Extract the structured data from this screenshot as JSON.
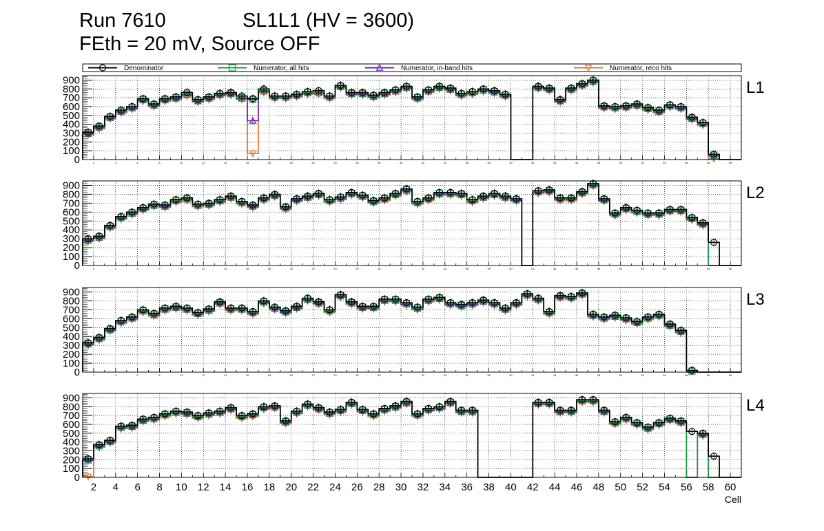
{
  "title": {
    "run": "Run 7610",
    "chamber": "SL1L1 (HV = 3600)",
    "settings": "FEth = 20 mV, Source OFF"
  },
  "colors": {
    "denominator": "#000000",
    "numerator_all": "#1a9a4a",
    "numerator_inband": "#6a1fb0",
    "numerator_reco": "#d97a3a"
  },
  "chart_data": {
    "type": "step-histogram",
    "xlabel": "Cell",
    "xlim": [
      1,
      61
    ],
    "ylim": [
      0,
      950
    ],
    "yticks": [
      0,
      100,
      200,
      300,
      400,
      500,
      600,
      700,
      800,
      900
    ],
    "xticks": [
      2,
      4,
      6,
      8,
      10,
      12,
      14,
      16,
      18,
      20,
      22,
      24,
      26,
      28,
      30,
      32,
      34,
      36,
      38,
      40,
      42,
      44,
      46,
      48,
      50,
      52,
      54,
      56,
      58,
      60
    ],
    "legend": [
      {
        "key": "denominator",
        "label": "Denominator",
        "marker": "circle"
      },
      {
        "key": "numerator_all",
        "label": "Numerator, all hits",
        "marker": "square"
      },
      {
        "key": "numerator_inband",
        "label": "Numerator, in-band hits",
        "marker": "triangle-up"
      },
      {
        "key": "numerator_reco",
        "label": "Numerator, reco hits",
        "marker": "triangle-down"
      }
    ],
    "layers": [
      {
        "name": "L1",
        "denominator": [
          310,
          380,
          490,
          560,
          600,
          690,
          630,
          690,
          710,
          760,
          680,
          710,
          750,
          760,
          720,
          690,
          800,
          720,
          720,
          740,
          770,
          780,
          720,
          840,
          760,
          760,
          730,
          760,
          790,
          830,
          710,
          790,
          830,
          810,
          750,
          770,
          800,
          780,
          740,
          0,
          0,
          830,
          810,
          680,
          810,
          860,
          900,
          610,
          600,
          610,
          630,
          590,
          560,
          620,
          600,
          480,
          420,
          60,
          0,
          0
        ],
        "all": [
          300,
          370,
          480,
          550,
          590,
          680,
          620,
          680,
          700,
          740,
          670,
          700,
          740,
          750,
          700,
          680,
          780,
          710,
          710,
          730,
          760,
          760,
          710,
          830,
          750,
          750,
          720,
          750,
          780,
          820,
          700,
          780,
          820,
          800,
          740,
          760,
          790,
          770,
          730,
          0,
          0,
          820,
          800,
          670,
          800,
          850,
          890,
          600,
          590,
          600,
          620,
          580,
          550,
          610,
          590,
          470,
          410,
          50,
          0,
          0
        ],
        "inband": [
          290,
          360,
          470,
          540,
          580,
          670,
          610,
          670,
          690,
          730,
          660,
          690,
          730,
          740,
          690,
          440,
          770,
          700,
          700,
          720,
          750,
          750,
          700,
          820,
          740,
          740,
          710,
          740,
          770,
          810,
          690,
          770,
          810,
          790,
          730,
          750,
          780,
          760,
          720,
          0,
          0,
          810,
          790,
          660,
          790,
          840,
          880,
          590,
          580,
          590,
          610,
          570,
          540,
          600,
          580,
          460,
          400,
          40,
          0,
          0
        ],
        "reco": [
          280,
          350,
          460,
          530,
          570,
          660,
          600,
          660,
          680,
          720,
          650,
          680,
          720,
          730,
          680,
          70,
          760,
          690,
          690,
          710,
          740,
          740,
          690,
          810,
          730,
          730,
          700,
          730,
          760,
          800,
          680,
          760,
          800,
          780,
          720,
          740,
          770,
          750,
          710,
          0,
          0,
          800,
          780,
          650,
          780,
          830,
          870,
          580,
          570,
          580,
          600,
          560,
          530,
          590,
          570,
          450,
          390,
          10,
          0,
          0
        ]
      },
      {
        "name": "L2",
        "denominator": [
          300,
          330,
          450,
          550,
          600,
          650,
          690,
          680,
          740,
          760,
          690,
          700,
          740,
          780,
          720,
          680,
          760,
          800,
          660,
          750,
          780,
          810,
          740,
          770,
          820,
          790,
          730,
          760,
          810,
          860,
          720,
          760,
          820,
          820,
          810,
          740,
          780,
          810,
          780,
          750,
          0,
          840,
          850,
          760,
          760,
          830,
          920,
          750,
          590,
          650,
          620,
          590,
          590,
          630,
          630,
          540,
          480,
          260,
          0,
          0
        ],
        "all": [
          290,
          320,
          440,
          540,
          590,
          640,
          680,
          670,
          730,
          750,
          680,
          690,
          730,
          770,
          710,
          670,
          750,
          790,
          650,
          740,
          770,
          800,
          730,
          760,
          810,
          780,
          720,
          750,
          800,
          850,
          710,
          750,
          810,
          810,
          800,
          730,
          770,
          800,
          770,
          740,
          0,
          830,
          840,
          750,
          750,
          820,
          910,
          740,
          580,
          640,
          610,
          580,
          580,
          620,
          620,
          530,
          470,
          0,
          0,
          0
        ],
        "inband": [
          280,
          310,
          430,
          530,
          580,
          630,
          670,
          660,
          720,
          740,
          670,
          680,
          720,
          760,
          700,
          660,
          740,
          780,
          640,
          730,
          760,
          790,
          720,
          750,
          800,
          770,
          710,
          740,
          790,
          840,
          700,
          740,
          800,
          800,
          790,
          720,
          760,
          790,
          760,
          730,
          0,
          820,
          830,
          740,
          740,
          810,
          900,
          730,
          570,
          630,
          600,
          570,
          570,
          610,
          610,
          520,
          460,
          0,
          0,
          0
        ],
        "reco": [
          270,
          300,
          420,
          520,
          570,
          620,
          660,
          650,
          710,
          730,
          660,
          670,
          710,
          750,
          690,
          650,
          730,
          770,
          630,
          720,
          750,
          780,
          710,
          740,
          790,
          760,
          700,
          730,
          780,
          830,
          690,
          730,
          790,
          790,
          780,
          710,
          750,
          780,
          750,
          720,
          0,
          810,
          820,
          730,
          730,
          800,
          890,
          720,
          560,
          620,
          590,
          560,
          560,
          600,
          600,
          510,
          450,
          0,
          0,
          0
        ]
      },
      {
        "name": "L3",
        "denominator": [
          330,
          390,
          490,
          580,
          620,
          700,
          660,
          720,
          740,
          720,
          670,
          710,
          790,
          720,
          720,
          680,
          800,
          730,
          690,
          740,
          830,
          790,
          700,
          870,
          790,
          740,
          740,
          820,
          820,
          780,
          730,
          820,
          840,
          780,
          760,
          780,
          810,
          780,
          720,
          780,
          880,
          830,
          680,
          860,
          850,
          890,
          650,
          620,
          640,
          610,
          570,
          620,
          650,
          540,
          470,
          20,
          0,
          0,
          0,
          0
        ],
        "all": [
          320,
          380,
          480,
          570,
          610,
          690,
          650,
          710,
          730,
          710,
          660,
          700,
          780,
          710,
          710,
          670,
          790,
          720,
          680,
          730,
          820,
          780,
          690,
          860,
          780,
          730,
          730,
          810,
          810,
          770,
          720,
          810,
          830,
          770,
          750,
          770,
          800,
          770,
          710,
          770,
          870,
          820,
          670,
          850,
          840,
          880,
          640,
          610,
          630,
          600,
          560,
          610,
          640,
          530,
          460,
          10,
          0,
          0,
          0,
          0
        ],
        "inband": [
          310,
          370,
          470,
          560,
          600,
          680,
          640,
          700,
          720,
          700,
          650,
          690,
          770,
          700,
          700,
          660,
          780,
          710,
          670,
          720,
          810,
          770,
          680,
          850,
          770,
          720,
          720,
          800,
          800,
          760,
          710,
          800,
          820,
          760,
          740,
          760,
          790,
          760,
          700,
          760,
          860,
          810,
          660,
          840,
          830,
          870,
          630,
          600,
          620,
          590,
          550,
          600,
          630,
          520,
          450,
          0,
          0,
          0,
          0,
          0
        ],
        "reco": [
          300,
          360,
          460,
          550,
          590,
          670,
          630,
          690,
          710,
          690,
          640,
          680,
          760,
          690,
          690,
          650,
          770,
          700,
          660,
          710,
          800,
          760,
          670,
          840,
          760,
          710,
          710,
          790,
          790,
          750,
          700,
          790,
          810,
          750,
          730,
          750,
          780,
          750,
          690,
          750,
          850,
          800,
          650,
          830,
          820,
          860,
          620,
          590,
          610,
          580,
          540,
          590,
          620,
          510,
          440,
          0,
          0,
          0,
          0,
          0
        ]
      },
      {
        "name": "L4",
        "denominator": [
          210,
          370,
          420,
          580,
          590,
          660,
          680,
          720,
          750,
          740,
          700,
          730,
          750,
          790,
          700,
          720,
          800,
          810,
          640,
          750,
          830,
          790,
          740,
          770,
          850,
          770,
          720,
          780,
          810,
          860,
          720,
          780,
          800,
          860,
          760,
          760,
          0,
          0,
          0,
          0,
          0,
          850,
          850,
          760,
          760,
          880,
          880,
          760,
          630,
          680,
          620,
          570,
          620,
          670,
          640,
          520,
          500,
          240,
          0,
          0
        ],
        "all": [
          200,
          360,
          410,
          570,
          580,
          650,
          670,
          710,
          740,
          730,
          690,
          720,
          740,
          780,
          690,
          710,
          790,
          800,
          630,
          740,
          820,
          780,
          730,
          760,
          840,
          760,
          710,
          770,
          800,
          850,
          710,
          770,
          790,
          850,
          750,
          750,
          0,
          0,
          0,
          0,
          0,
          840,
          840,
          750,
          750,
          870,
          870,
          750,
          620,
          670,
          610,
          560,
          610,
          660,
          630,
          0,
          490,
          0,
          0,
          0
        ],
        "inband": [
          190,
          350,
          400,
          560,
          570,
          640,
          660,
          700,
          730,
          720,
          680,
          710,
          730,
          770,
          680,
          700,
          780,
          790,
          620,
          730,
          810,
          770,
          720,
          750,
          830,
          750,
          700,
          760,
          790,
          840,
          700,
          760,
          780,
          840,
          740,
          740,
          0,
          0,
          0,
          0,
          0,
          830,
          830,
          740,
          740,
          860,
          860,
          740,
          610,
          660,
          600,
          550,
          600,
          650,
          620,
          0,
          480,
          0,
          0,
          0
        ],
        "reco": [
          10,
          340,
          390,
          550,
          560,
          630,
          650,
          690,
          720,
          710,
          670,
          700,
          720,
          760,
          670,
          690,
          770,
          780,
          610,
          720,
          800,
          760,
          710,
          740,
          820,
          740,
          690,
          750,
          780,
          830,
          690,
          750,
          770,
          830,
          730,
          730,
          0,
          0,
          0,
          0,
          0,
          820,
          820,
          730,
          730,
          850,
          850,
          730,
          600,
          650,
          590,
          540,
          590,
          640,
          610,
          0,
          470,
          0,
          0,
          0
        ]
      }
    ]
  }
}
